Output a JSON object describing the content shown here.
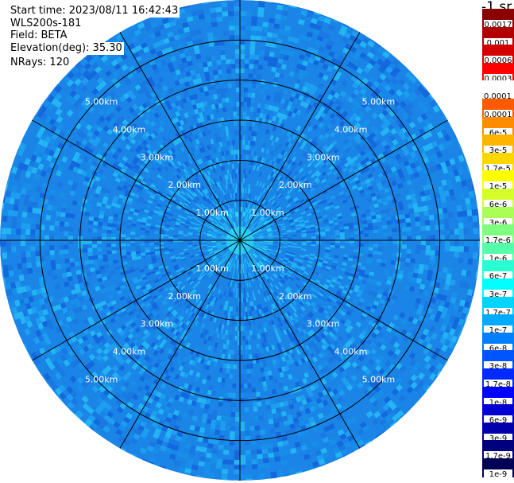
{
  "info": {
    "start_time": "Start time: 2023/08/11 16:42:43",
    "device": "WLS200s-181",
    "field": "Field: BETA",
    "elevation": "Elevation(deg): 35.30",
    "nrays": "NRays: 120"
  },
  "colorbar": {
    "title": "-1 sr",
    "labels": [
      "0.0017",
      "0.001",
      "0.0006",
      "0.0003",
      "0.00017",
      "0.0001",
      "6e-5",
      "3e-5",
      "1.7e-5",
      "1e-5",
      "6e-6",
      "3e-6",
      "1.7e-6",
      "1e-6",
      "6e-7",
      "3e-7",
      "1.7e-7",
      "1e-7",
      "6e-8",
      "3e-8",
      "1.7e-8",
      "1e-8",
      "6e-9",
      "3e-9",
      "1.7e-9",
      "1e-9"
    ],
    "colors": [
      "#8b0000",
      "#b00000",
      "#d40000",
      "#ff0000",
      "#ffffff",
      "#ff5a00",
      "#ff8c00",
      "#ffb400",
      "#ffd700",
      "#ffff00",
      "#d4ff2a",
      "#aaff55",
      "#7fff7f",
      "#55ffaa",
      "#2affd4",
      "#00ffff",
      "#00d4ff",
      "#00aaff",
      "#007fff",
      "#0055ff",
      "#002aff",
      "#0000ff",
      "#0000d4",
      "#0000aa",
      "#00007f",
      "#000055"
    ]
  },
  "chart_data": {
    "type": "heatmap",
    "projection": "polar",
    "field": "BETA",
    "nrays": 120,
    "elevation_deg": 35.3,
    "radial_unit": "km",
    "radial_max": 6.0,
    "ring_values": [
      1,
      2,
      3,
      4,
      5
    ],
    "ring_tick_labels": [
      "1.00km",
      "2.00km",
      "3.00km",
      "4.00km",
      "5.00km"
    ],
    "azimuth_spokes_deg": [
      0,
      30,
      60,
      90,
      120,
      150,
      180,
      210,
      240,
      270,
      300,
      330
    ],
    "dominant_range_bins": [
      {
        "range_km": [
          0.0,
          0.8
        ],
        "beta_approx": "1e-7",
        "color": "#21c4f5"
      },
      {
        "range_km": [
          0.8,
          2.0
        ],
        "beta_approx": "6e-8",
        "color": "#1ea2ee"
      },
      {
        "range_km": [
          2.0,
          6.0
        ],
        "beta_approx": "3e-8",
        "color": "#1a85e6"
      }
    ]
  }
}
